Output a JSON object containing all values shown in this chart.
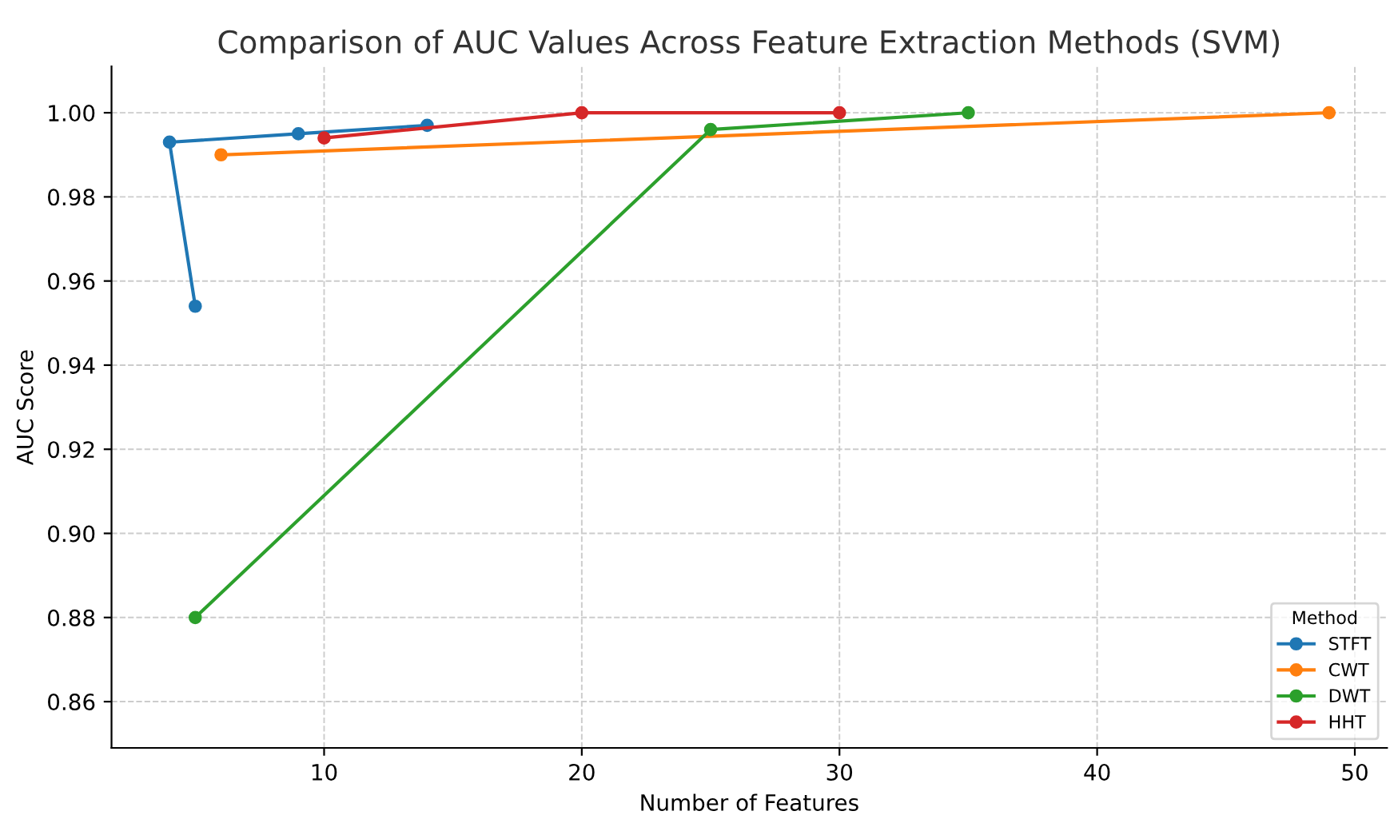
{
  "chart_data": {
    "type": "line",
    "title": "Comparison of AUC Values Across Feature Extraction Methods (SVM)",
    "xlabel": "Number of Features",
    "ylabel": "AUC Score",
    "legend_title": "Method",
    "legend": "bottom right",
    "grid": true,
    "marker": "circle",
    "line_style": "solid",
    "xlim": [
      1.75,
      51.25
    ],
    "xticks": [
      10,
      20,
      30,
      40,
      50
    ],
    "ylim": [
      0.849,
      1.011
    ],
    "yticks": [
      {
        "value": 0.86,
        "label": "0.86"
      },
      {
        "value": 0.88,
        "label": "0.88"
      },
      {
        "value": 0.9,
        "label": "0.90"
      },
      {
        "value": 0.92,
        "label": "0.92"
      },
      {
        "value": 0.94,
        "label": "0.94"
      },
      {
        "value": 0.96,
        "label": "0.96"
      },
      {
        "value": 0.98,
        "label": "0.98"
      },
      {
        "value": 1.0,
        "label": "1.00"
      }
    ],
    "series": [
      {
        "name": "STFT",
        "color": "#1f77b4",
        "x": [
          5,
          4,
          9,
          14
        ],
        "values": [
          0.954,
          0.993,
          0.995,
          0.997
        ]
      },
      {
        "name": "CWT",
        "color": "#ff7f0e",
        "x": [
          6,
          49
        ],
        "values": [
          0.99,
          1.0
        ]
      },
      {
        "name": "DWT",
        "color": "#2ca02c",
        "x": [
          5,
          25,
          35
        ],
        "values": [
          0.88,
          0.996,
          1.0
        ]
      },
      {
        "name": "HHT",
        "color": "#d62728",
        "x": [
          10,
          20,
          30
        ],
        "values": [
          0.994,
          1.0,
          1.0
        ]
      }
    ]
  }
}
